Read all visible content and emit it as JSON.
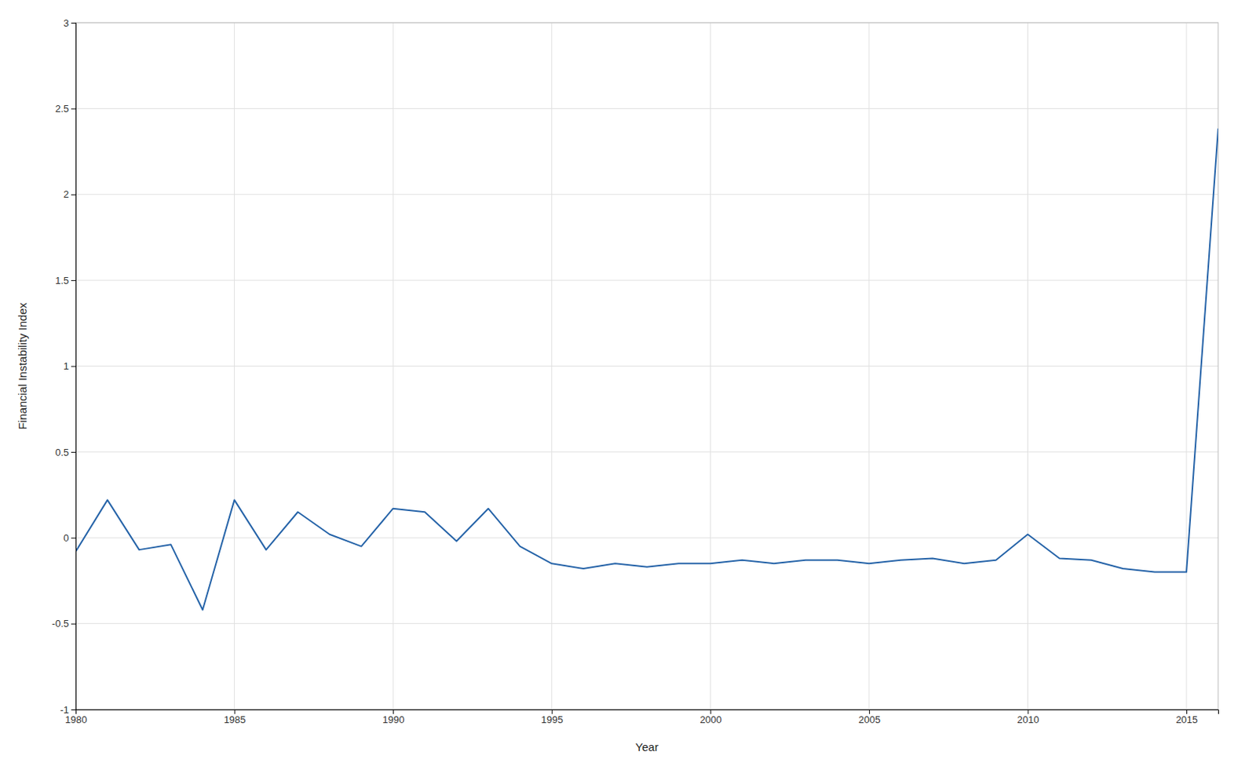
{
  "chart_data": {
    "type": "line",
    "x_label": "Year",
    "y_label": "Financial Instability Index",
    "x": [
      1980,
      1981,
      1982,
      1983,
      1984,
      1985,
      1986,
      1987,
      1988,
      1989,
      1990,
      1991,
      1992,
      1993,
      1994,
      1995,
      1996,
      1997,
      1998,
      1999,
      2000,
      2001,
      2002,
      2003,
      2004,
      2005,
      2006,
      2007,
      2008,
      2009,
      2010,
      2011,
      2012,
      2013,
      2014,
      2015,
      2016
    ],
    "values": [
      -0.08,
      0.22,
      -0.07,
      -0.04,
      -0.42,
      0.22,
      -0.07,
      0.15,
      0.02,
      -0.05,
      0.17,
      0.15,
      -0.02,
      0.17,
      -0.05,
      -0.15,
      -0.18,
      -0.15,
      -0.17,
      -0.15,
      -0.15,
      -0.13,
      -0.15,
      -0.13,
      -0.13,
      -0.15,
      -0.13,
      -0.12,
      -0.15,
      -0.13,
      0.02,
      -0.12,
      -0.13,
      -0.18,
      -0.2,
      -0.2,
      2.38
    ],
    "color": "#2563a8",
    "xlim": [
      1980,
      2016
    ],
    "ylim": [
      -1.0,
      3.0
    ],
    "xticks": [
      1980,
      1985,
      1990,
      1995,
      2000,
      2005,
      2010,
      2015
    ],
    "yticks": [
      -1.0,
      -0.5,
      0.0,
      0.5,
      1.0,
      1.5,
      2.0,
      2.5,
      3.0
    ],
    "grid": true
  }
}
